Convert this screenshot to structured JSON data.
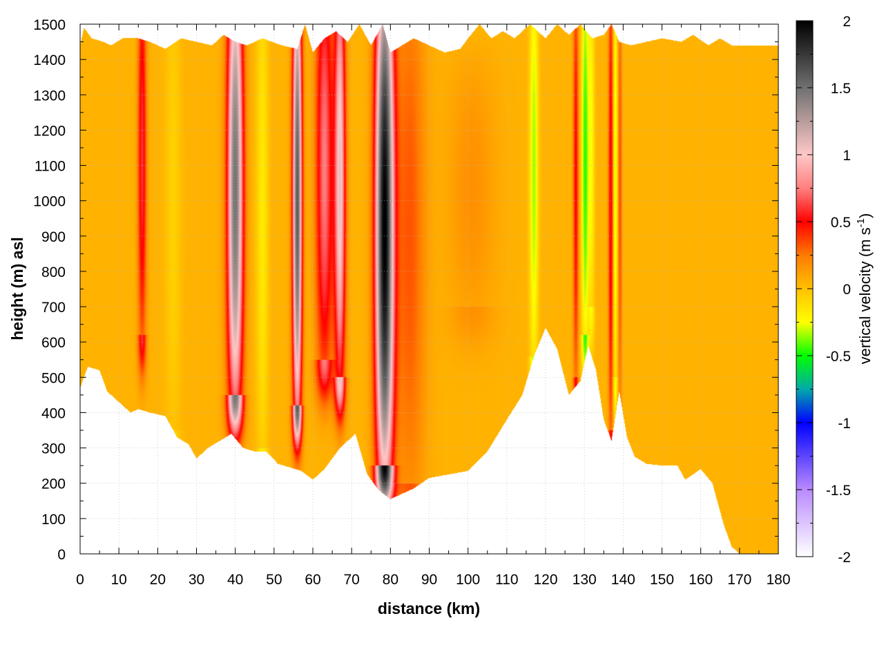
{
  "chart_data": {
    "type": "heatmap",
    "title": "",
    "xlabel": "distance (km)",
    "ylabel": "height (m) asl",
    "colorbar_label": "vertical velocity (m s",
    "colorbar_label_superscript": "-1",
    "colorbar_label_close": ")",
    "xlim": [
      0,
      180
    ],
    "ylim": [
      0,
      1500
    ],
    "zlim": [
      -2,
      2
    ],
    "x_ticks": [
      "0",
      "10",
      "20",
      "30",
      "40",
      "50",
      "60",
      "70",
      "80",
      "90",
      "100",
      "110",
      "120",
      "130",
      "140",
      "150",
      "160",
      "170",
      "180"
    ],
    "y_ticks": [
      "0",
      "100",
      "200",
      "300",
      "400",
      "500",
      "600",
      "700",
      "800",
      "900",
      "1000",
      "1100",
      "1200",
      "1300",
      "1400",
      "1500"
    ],
    "z_ticks": [
      "-2",
      "-1.5",
      "-1",
      "-0.5",
      "0",
      "0.5",
      "1",
      "1.5",
      "2"
    ],
    "grid": true,
    "colormap": [
      {
        "v": -2.0,
        "color": "#ffffff"
      },
      {
        "v": -1.5,
        "color": "#b98aff"
      },
      {
        "v": -1.0,
        "color": "#0000ff"
      },
      {
        "v": -0.75,
        "color": "#00aaaa"
      },
      {
        "v": -0.5,
        "color": "#00ff00"
      },
      {
        "v": -0.25,
        "color": "#ffff00"
      },
      {
        "v": 0.0,
        "color": "#ffc000"
      },
      {
        "v": 0.25,
        "color": "#ff7a00"
      },
      {
        "v": 0.5,
        "color": "#ff0000"
      },
      {
        "v": 0.75,
        "color": "#ff7f7f"
      },
      {
        "v": 1.0,
        "color": "#ffc8c8"
      },
      {
        "v": 1.5,
        "color": "#707070"
      },
      {
        "v": 2.0,
        "color": "#000000"
      }
    ],
    "background_value": 0.05,
    "terrain_km_m": [
      [
        0,
        470
      ],
      [
        2,
        530
      ],
      [
        5,
        520
      ],
      [
        7,
        460
      ],
      [
        10,
        430
      ],
      [
        13,
        400
      ],
      [
        15,
        410
      ],
      [
        18,
        400
      ],
      [
        22,
        390
      ],
      [
        25,
        330
      ],
      [
        28,
        310
      ],
      [
        30,
        270
      ],
      [
        33,
        300
      ],
      [
        36,
        320
      ],
      [
        39,
        340
      ],
      [
        42,
        300
      ],
      [
        45,
        290
      ],
      [
        48,
        290
      ],
      [
        51,
        255
      ],
      [
        54,
        245
      ],
      [
        57,
        235
      ],
      [
        60,
        210
      ],
      [
        63,
        240
      ],
      [
        67,
        300
      ],
      [
        71,
        340
      ],
      [
        74,
        225
      ],
      [
        77,
        180
      ],
      [
        80,
        155
      ],
      [
        83,
        170
      ],
      [
        86,
        185
      ],
      [
        90,
        215
      ],
      [
        95,
        225
      ],
      [
        100,
        235
      ],
      [
        105,
        290
      ],
      [
        110,
        380
      ],
      [
        114,
        450
      ],
      [
        117,
        560
      ],
      [
        120,
        640
      ],
      [
        123,
        580
      ],
      [
        126,
        450
      ],
      [
        129,
        490
      ],
      [
        131,
        590
      ],
      [
        133,
        520
      ],
      [
        135,
        380
      ],
      [
        137,
        320
      ],
      [
        139,
        460
      ],
      [
        141,
        330
      ],
      [
        143,
        275
      ],
      [
        146,
        255
      ],
      [
        150,
        250
      ],
      [
        154,
        250
      ],
      [
        156,
        210
      ],
      [
        160,
        240
      ],
      [
        163,
        200
      ],
      [
        166,
        80
      ],
      [
        168,
        20
      ],
      [
        170,
        0
      ],
      [
        180,
        0
      ]
    ],
    "top_km_m": [
      [
        0,
        1440
      ],
      [
        1,
        1490
      ],
      [
        3,
        1460
      ],
      [
        6,
        1450
      ],
      [
        8,
        1440
      ],
      [
        11,
        1460
      ],
      [
        15,
        1460
      ],
      [
        18,
        1450
      ],
      [
        22,
        1430
      ],
      [
        26,
        1460
      ],
      [
        30,
        1450
      ],
      [
        34,
        1440
      ],
      [
        37,
        1470
      ],
      [
        40,
        1450
      ],
      [
        43,
        1440
      ],
      [
        47,
        1460
      ],
      [
        52,
        1440
      ],
      [
        56,
        1430
      ],
      [
        58,
        1500
      ],
      [
        60,
        1420
      ],
      [
        63,
        1460
      ],
      [
        66,
        1480
      ],
      [
        69,
        1450
      ],
      [
        72,
        1500
      ],
      [
        75,
        1440
      ],
      [
        78,
        1500
      ],
      [
        80,
        1420
      ],
      [
        83,
        1440
      ],
      [
        86,
        1460
      ],
      [
        90,
        1440
      ],
      [
        94,
        1420
      ],
      [
        98,
        1430
      ],
      [
        100,
        1460
      ],
      [
        103,
        1500
      ],
      [
        106,
        1460
      ],
      [
        109,
        1480
      ],
      [
        112,
        1460
      ],
      [
        116,
        1500
      ],
      [
        120,
        1460
      ],
      [
        123,
        1500
      ],
      [
        126,
        1470
      ],
      [
        129,
        1500
      ],
      [
        132,
        1460
      ],
      [
        135,
        1470
      ],
      [
        137,
        1500
      ],
      [
        139,
        1450
      ],
      [
        142,
        1440
      ],
      [
        146,
        1450
      ],
      [
        150,
        1460
      ],
      [
        155,
        1450
      ],
      [
        158,
        1470
      ],
      [
        162,
        1440
      ],
      [
        165,
        1460
      ],
      [
        168,
        1440
      ],
      [
        180,
        1440
      ]
    ],
    "features": [
      {
        "x_km": 16,
        "peak": 0.55,
        "width_km": 1.1,
        "z_bottom": 620,
        "z_top": 1460
      },
      {
        "x_km": 40,
        "peak": 1.45,
        "width_km": 2.0,
        "z_bottom": 450,
        "z_top": 1450
      },
      {
        "x_km": 56,
        "peak": 1.55,
        "width_km": 1.2,
        "z_bottom": 420,
        "z_top": 1430
      },
      {
        "x_km": 63,
        "peak": 0.7,
        "width_km": 2.2,
        "z_bottom": 550,
        "z_top": 1470
      },
      {
        "x_km": 67,
        "peak": 1.0,
        "width_km": 1.4,
        "z_bottom": 500,
        "z_top": 1450
      },
      {
        "x_km": 78.5,
        "peak": 1.95,
        "width_km": 2.3,
        "z_bottom": 250,
        "z_top": 1440
      },
      {
        "x_km": 85,
        "peak": 0.28,
        "width_km": 4.0,
        "z_bottom": 200,
        "z_top": 1450
      },
      {
        "x_km": 101,
        "peak": 0.12,
        "width_km": 6.0,
        "z_bottom": 700,
        "z_top": 1200
      },
      {
        "x_km": 47,
        "peak": -0.22,
        "width_km": 1.5,
        "z_bottom": 300,
        "z_top": 1450
      },
      {
        "x_km": 24,
        "peak": -0.12,
        "width_km": 2.0,
        "z_bottom": 350,
        "z_top": 1450
      },
      {
        "x_km": 117,
        "peak": -0.4,
        "width_km": 1.1,
        "z_bottom": 560,
        "z_top": 1450
      },
      {
        "x_km": 127.8,
        "peak": 0.45,
        "width_km": 0.7,
        "z_bottom": 500,
        "z_top": 1450
      },
      {
        "x_km": 130.2,
        "peak": -0.52,
        "width_km": 0.9,
        "z_bottom": 620,
        "z_top": 1450
      },
      {
        "x_km": 131.8,
        "peak": -0.28,
        "width_km": 0.8,
        "z_bottom": 700,
        "z_top": 1450
      },
      {
        "x_km": 136.8,
        "peak": 0.5,
        "width_km": 0.6,
        "z_bottom": 350,
        "z_top": 1460
      },
      {
        "x_km": 138.0,
        "peak": -0.35,
        "width_km": 0.5,
        "z_bottom": 500,
        "z_top": 1460
      },
      {
        "x_km": 139.2,
        "peak": 0.3,
        "width_km": 0.5,
        "z_bottom": 400,
        "z_top": 1450
      }
    ]
  }
}
